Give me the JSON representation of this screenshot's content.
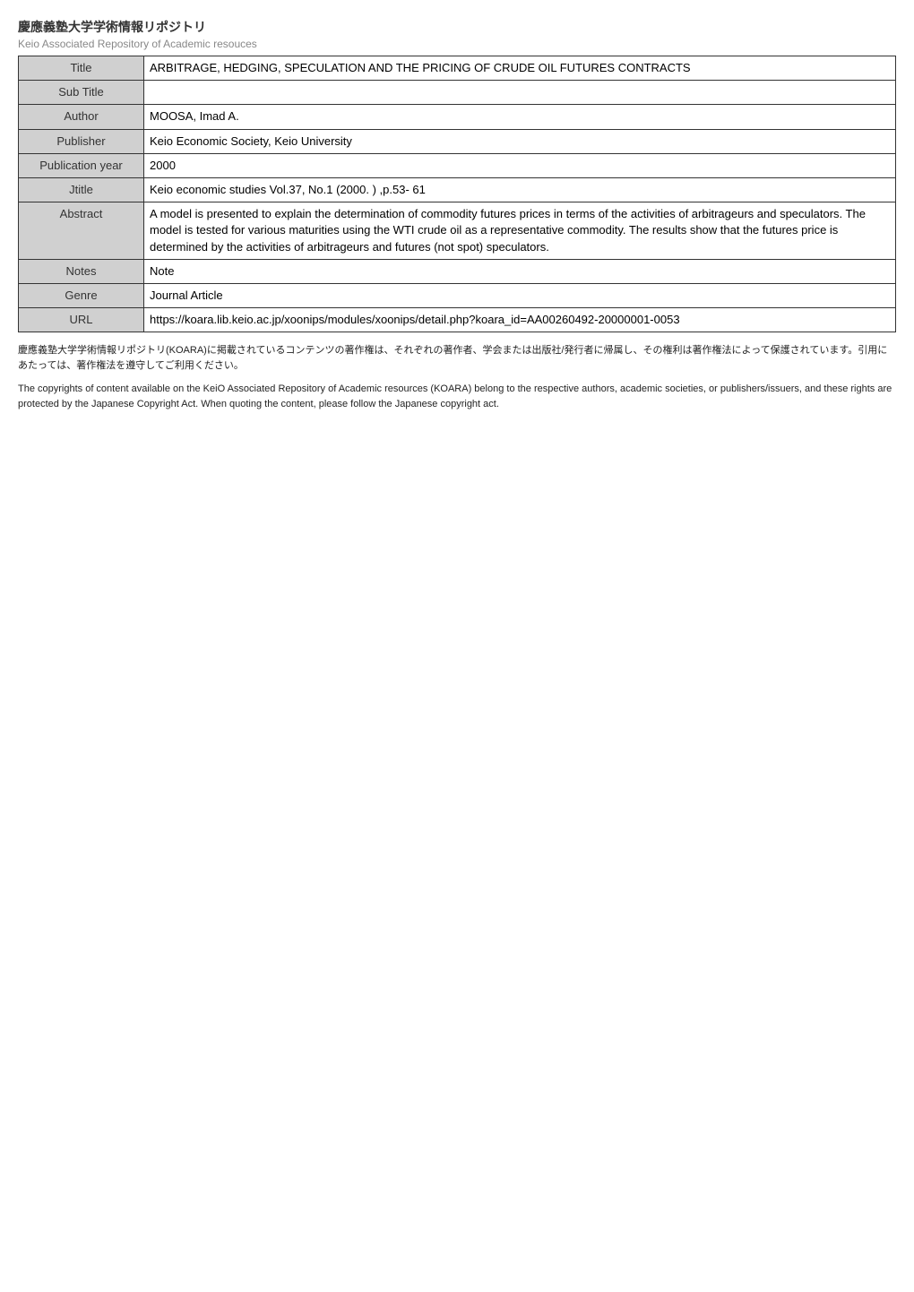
{
  "header": {
    "title_jp": "慶應義塾大学学術情報リポジトリ",
    "subtitle_en": "Keio Associated Repository of Academic resouces"
  },
  "table": {
    "rows": [
      {
        "label": "Title",
        "value": "ARBITRAGE, HEDGING, SPECULATION AND THE PRICING OF CRUDE OIL FUTURES CONTRACTS"
      },
      {
        "label": "Sub Title",
        "value": ""
      },
      {
        "label": "Author",
        "value": "MOOSA, Imad A."
      },
      {
        "label": "Publisher",
        "value": "Keio Economic Society, Keio University"
      },
      {
        "label": "Publication year",
        "value": "2000"
      },
      {
        "label": "Jtitle",
        "value": "Keio economic studies Vol.37, No.1 (2000. ) ,p.53- 61"
      },
      {
        "label": "Abstract",
        "value": "A model is presented to explain the determination of commodity futures prices in terms of the activities of arbitrageurs and speculators. The model is tested for various maturities using the WTI crude oil as a representative commodity. The results show that the futures price is determined by the activities of arbitrageurs and futures (not spot) speculators."
      },
      {
        "label": "Notes",
        "value": "Note"
      },
      {
        "label": "Genre",
        "value": "Journal Article"
      },
      {
        "label": "URL",
        "value": "https://koara.lib.keio.ac.jp/xoonips/modules/xoonips/detail.php?koara_id=AA00260492-20000001-0053"
      }
    ]
  },
  "footnotes": {
    "jp": "慶應義塾大学学術情報リポジトリ(KOARA)に掲載されているコンテンツの著作権は、それぞれの著作者、学会または出版社/発行者に帰属し、その権利は著作権法によって保護されています。引用にあたっては、著作権法を遵守してご利用ください。",
    "en": "The copyrights of content available on the KeiO Associated Repository of Academic resources (KOARA) belong to the respective authors, academic societies, or publishers/issuers, and these rights are protected by the Japanese Copyright Act. When quoting the content, please follow the Japanese copyright act."
  },
  "colors": {
    "label_bg": "#d0d0d0",
    "border": "#333333",
    "text": "#000000",
    "subtitle": "#888888"
  }
}
